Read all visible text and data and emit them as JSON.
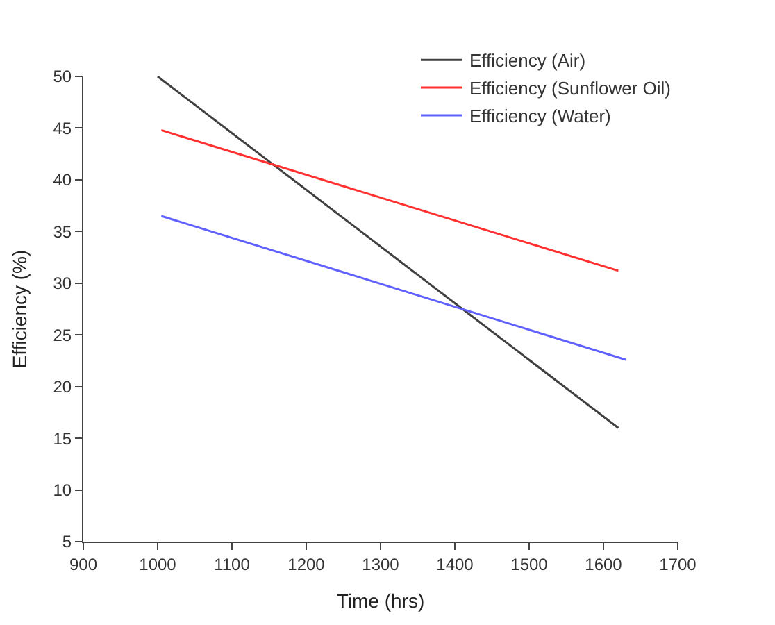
{
  "chart_data": {
    "type": "line",
    "xlabel": "Time (hrs)",
    "ylabel": "Efficiency (%)",
    "series": [
      {
        "name": "Efficiency (Air)",
        "color": "#404040",
        "x": [
          1000,
          1620
        ],
        "values": [
          50,
          16
        ]
      },
      {
        "name": "Efficiency (Sunflower Oil)",
        "color": "#ff3030",
        "x": [
          1005,
          1620
        ],
        "values": [
          44.8,
          31.2
        ]
      },
      {
        "name": "Efficiency (Water)",
        "color": "#6060ff",
        "x": [
          1005,
          1630
        ],
        "values": [
          36.5,
          22.6
        ]
      }
    ],
    "xlim": [
      900,
      1700
    ],
    "xticks": [
      900,
      1000,
      1100,
      1200,
      1300,
      1400,
      1500,
      1600,
      1700
    ],
    "ylim": [
      5,
      50
    ],
    "yticks": [
      5,
      10,
      15,
      20,
      25,
      30,
      35,
      40,
      45,
      50
    ],
    "legend": "top right",
    "marker": "none",
    "line_style": "solid"
  }
}
